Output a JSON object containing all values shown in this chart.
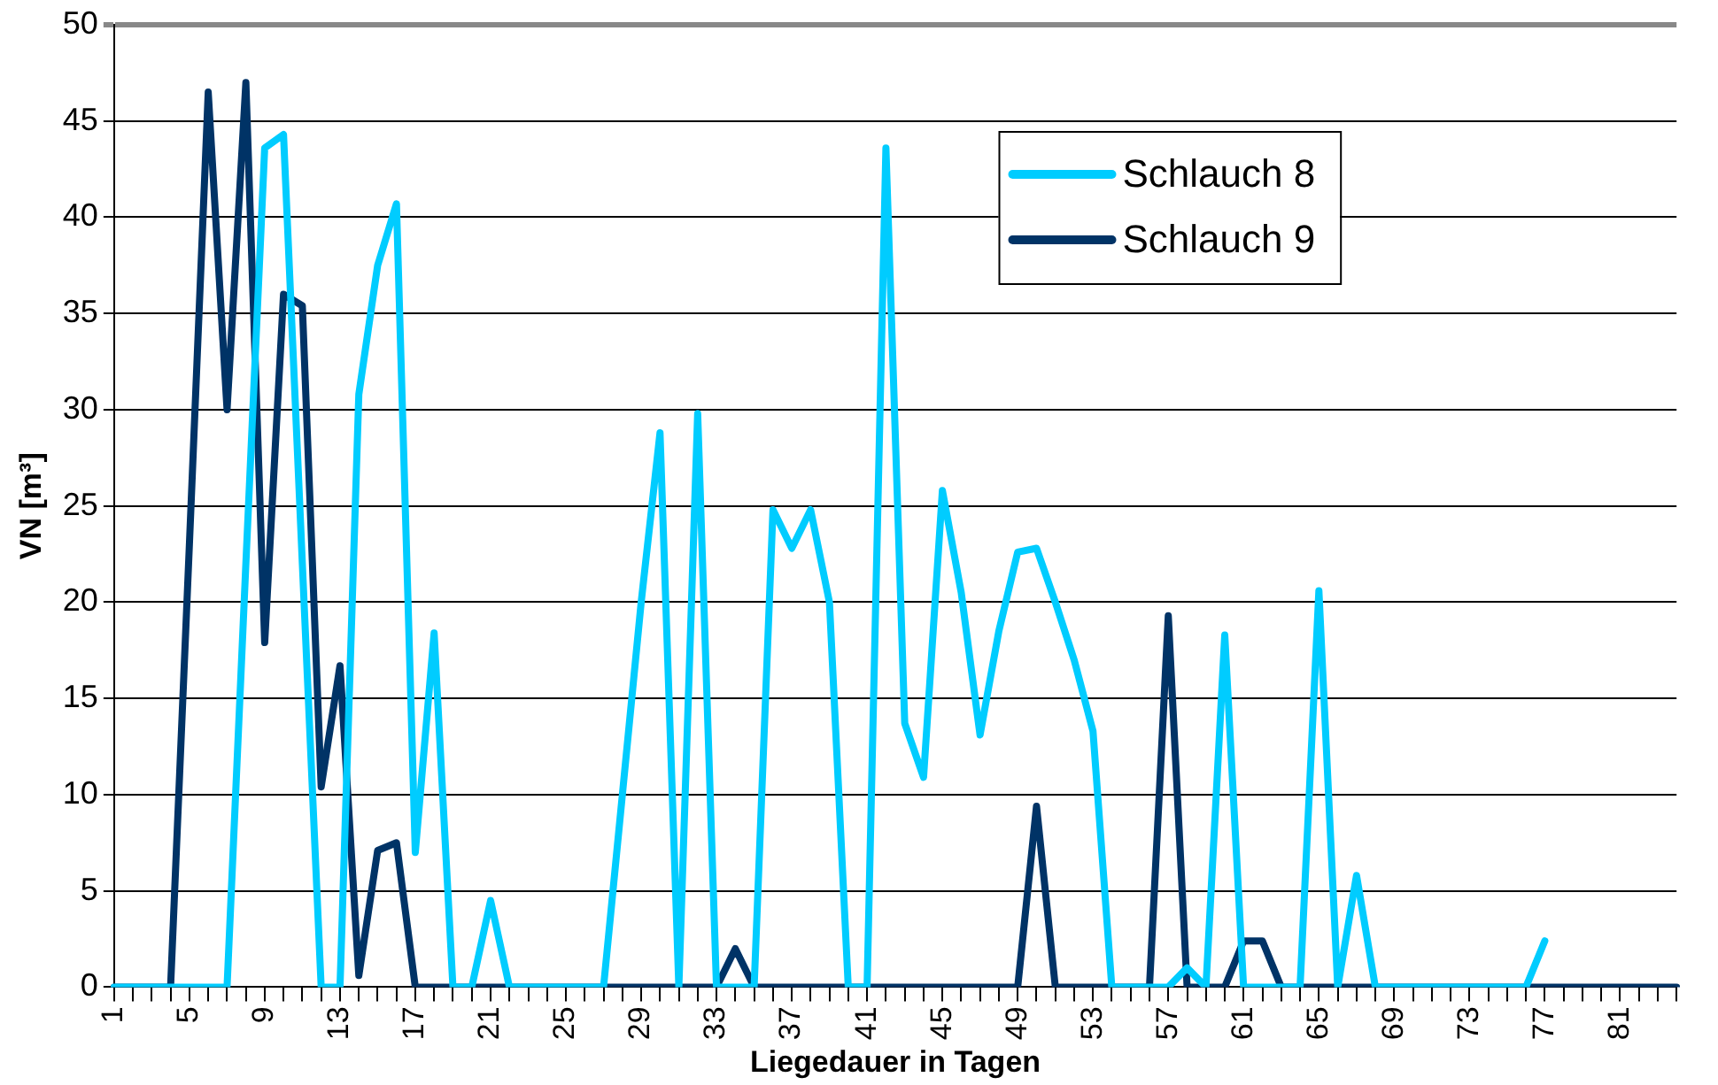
{
  "chart_data": {
    "type": "line",
    "xlabel": "Liegedauer in Tagen",
    "ylabel": "VN [m³]",
    "categories": [
      "1",
      null,
      null,
      null,
      "5",
      null,
      null,
      null,
      "9",
      null,
      null,
      null,
      "13",
      null,
      null,
      null,
      "17",
      null,
      null,
      null,
      "21",
      null,
      null,
      null,
      "25",
      null,
      null,
      null,
      "29",
      null,
      null,
      null,
      "33",
      null,
      null,
      null,
      "37",
      null,
      null,
      null,
      "41",
      null,
      null,
      null,
      "45",
      null,
      null,
      null,
      "49",
      null,
      null,
      null,
      "53",
      null,
      null,
      null,
      "57",
      null,
      null,
      null,
      "61",
      null,
      null,
      null,
      "65",
      null,
      null,
      null,
      "69",
      null,
      null,
      null,
      "73",
      null,
      null,
      null,
      "77",
      null,
      null,
      null,
      "81",
      null,
      null,
      null
    ],
    "series": [
      {
        "name": "Schlauch 8",
        "color": "#00ccff",
        "values": [
          0,
          0,
          0,
          0,
          0,
          0,
          0,
          22,
          43.6,
          44.3,
          22,
          0,
          0,
          30.8,
          37.5,
          40.7,
          7,
          18.4,
          0,
          0,
          4.5,
          0,
          0,
          0,
          0,
          0,
          0,
          10,
          20,
          28.8,
          0,
          29.8,
          0,
          0,
          0,
          24.8,
          22.8,
          24.8,
          20,
          0,
          0,
          43.6,
          13.7,
          10.9,
          25.8,
          20.5,
          13.1,
          18.5,
          22.6,
          22.8,
          20,
          17,
          13.3,
          0,
          0,
          0,
          0,
          1,
          0,
          18.3,
          0,
          0,
          0,
          0,
          20.6,
          0,
          5.8,
          0,
          0,
          0,
          0,
          0,
          0,
          0,
          0,
          0,
          2.4,
          null,
          null,
          null,
          null,
          null,
          null,
          null
        ]
      },
      {
        "name": "Schlauch 9",
        "color": "#003366",
        "values": [
          0,
          0,
          0,
          0,
          23,
          46.5,
          30,
          47,
          17.9,
          36,
          35.4,
          10.4,
          16.7,
          0.6,
          7.1,
          7.5,
          0,
          0,
          0,
          0,
          0,
          0,
          0,
          0,
          0,
          0,
          0,
          0,
          0,
          0,
          0,
          0,
          0,
          2,
          0,
          0,
          0,
          0,
          0,
          0,
          0,
          0,
          0,
          0,
          0,
          0,
          0,
          0,
          0,
          9.4,
          0,
          0,
          0,
          0,
          0,
          0,
          19.3,
          0,
          0,
          0,
          2.4,
          2.4,
          0,
          0,
          0,
          0,
          0,
          0,
          0,
          0,
          0,
          0,
          0,
          0,
          0,
          0,
          0,
          0,
          0,
          0,
          0,
          0,
          0,
          0
        ]
      }
    ],
    "ylim": [
      0,
      50
    ],
    "yticks": [
      0,
      5,
      10,
      15,
      20,
      25,
      30,
      35,
      40,
      45,
      50
    ],
    "grid": "y",
    "legend": "top right",
    "marker": "none",
    "line_style": "solid"
  }
}
